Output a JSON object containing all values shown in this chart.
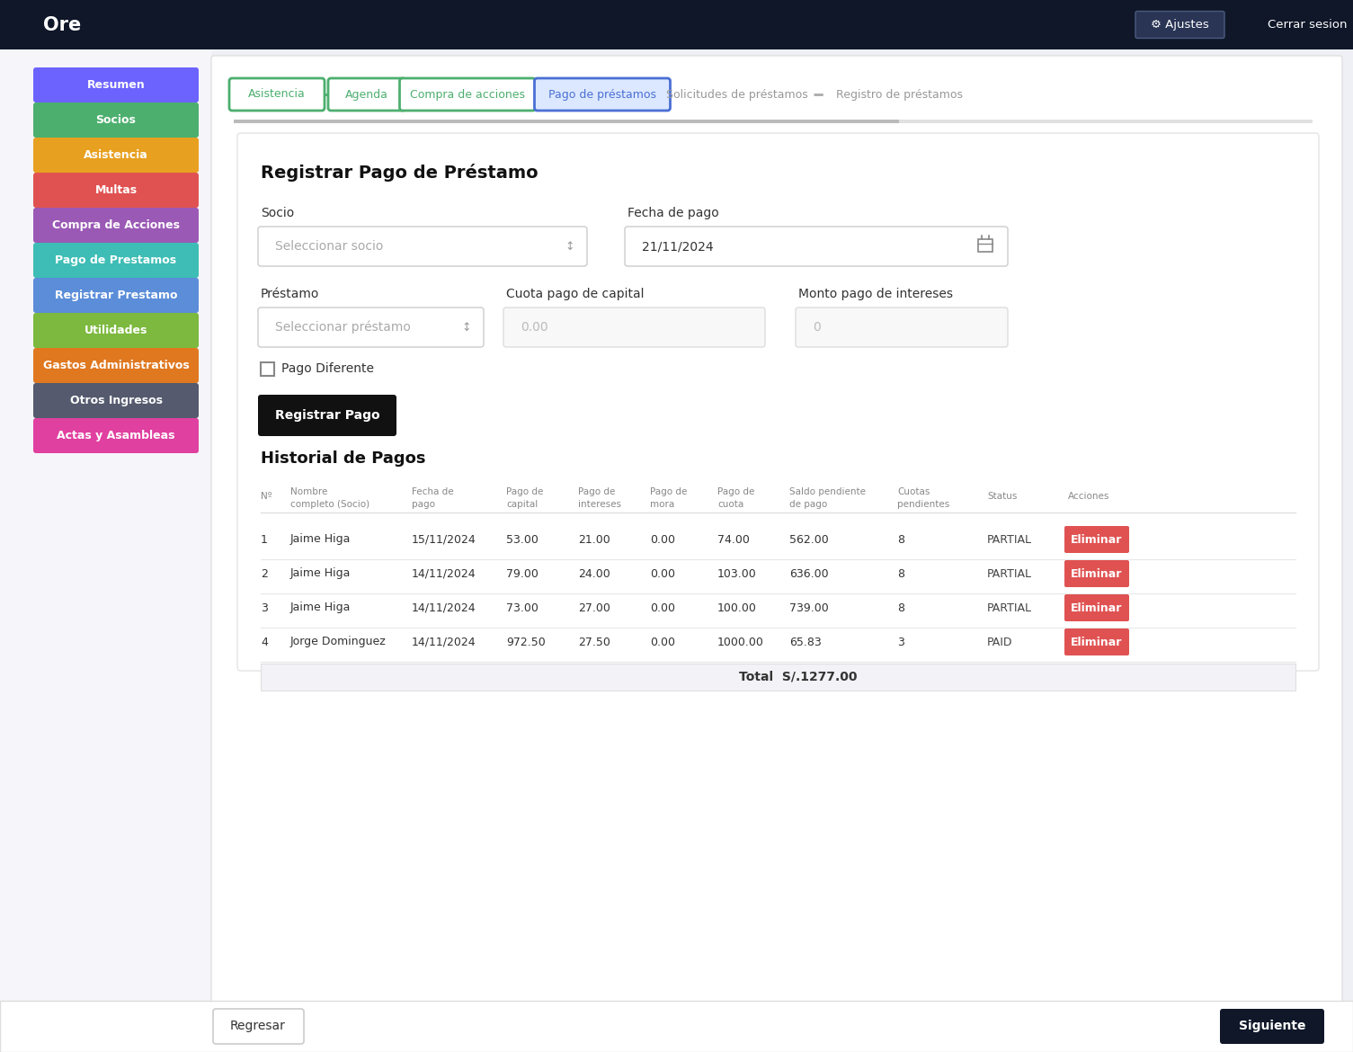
{
  "title": "Ore",
  "nav_bg": "#0f1729",
  "nav_text_color": "#ffffff",
  "sidebar_bg": "#f5f5fa",
  "main_bg": "#eef0f5",
  "card_bg": "#ffffff",
  "sidebar_items": [
    {
      "label": "Resumen",
      "color": "#6c63ff"
    },
    {
      "label": "Socios",
      "color": "#4caf6e"
    },
    {
      "label": "Asistencia",
      "color": "#e8a020"
    },
    {
      "label": "Multas",
      "color": "#e05252"
    },
    {
      "label": "Compra de Acciones",
      "color": "#9b59b6"
    },
    {
      "label": "Pago de Prestamos",
      "color": "#3dbdb5"
    },
    {
      "label": "Registrar Prestamo",
      "color": "#5b8dd9"
    },
    {
      "label": "Utilidades",
      "color": "#7cb93e"
    },
    {
      "label": "Gastos Administrativos",
      "color": "#e07820"
    },
    {
      "label": "Otros Ingresos",
      "color": "#555a6e"
    },
    {
      "label": "Actas y Asambleas",
      "color": "#e040a0"
    }
  ],
  "steps": [
    {
      "label": "Asistencia",
      "done": true,
      "active": false
    },
    {
      "label": "Agenda",
      "done": true,
      "active": false
    },
    {
      "label": "Compra de acciones",
      "done": true,
      "active": false
    },
    {
      "label": "Pago de préstamos",
      "done": false,
      "active": true
    },
    {
      "label": "Solicitudes de préstamos",
      "done": false,
      "active": false
    },
    {
      "label": "Registro de préstamos",
      "done": false,
      "active": false
    }
  ],
  "form_title": "Registrar Pago de Préstamo",
  "field_socio_label": "Socio",
  "field_socio_placeholder": "Seleccionar socio",
  "field_fecha_label": "Fecha de pago",
  "field_fecha_value": "21/11/2024",
  "field_prestamo_label": "Préstamo",
  "field_prestamo_placeholder": "Seleccionar préstamo",
  "field_cuota_label": "Cuota pago de capital",
  "field_cuota_placeholder": "0.00",
  "field_monto_label": "Monto pago de intereses",
  "field_monto_placeholder": "0",
  "checkbox_label": "Pago Diferente",
  "btn_label": "Registrar Pago",
  "table_title": "Historial de Pagos",
  "table_col_headers": [
    [
      "Nº",
      ""
    ],
    [
      "Nombre",
      "completo (Socio)"
    ],
    [
      "Fecha de",
      "pago"
    ],
    [
      "Pago de",
      "capital"
    ],
    [
      "Pago de",
      "intereses"
    ],
    [
      "Pago de",
      "mora"
    ],
    [
      "Pago de",
      "cuota"
    ],
    [
      "Saldo pendiente",
      "de pago"
    ],
    [
      "Cuotas",
      "pendientes"
    ],
    [
      "Status",
      ""
    ],
    [
      "Acciones",
      ""
    ]
  ],
  "table_rows": [
    [
      "1",
      "Jaime Higa",
      "15/11/2024",
      "53.00",
      "21.00",
      "0.00",
      "74.00",
      "562.00",
      "8",
      "PARTIAL",
      "Eliminar"
    ],
    [
      "2",
      "Jaime Higa",
      "14/11/2024",
      "79.00",
      "24.00",
      "0.00",
      "103.00",
      "636.00",
      "8",
      "PARTIAL",
      "Eliminar"
    ],
    [
      "3",
      "Jaime Higa",
      "14/11/2024",
      "73.00",
      "27.00",
      "0.00",
      "100.00",
      "739.00",
      "8",
      "PARTIAL",
      "Eliminar"
    ],
    [
      "4",
      "Jorge Dominguez",
      "14/11/2024",
      "972.50",
      "27.50",
      "0.00",
      "1000.00",
      "65.83",
      "3",
      "PAID",
      "Eliminar"
    ]
  ],
  "table_total": "Total  S/.1277.00",
  "btn_regresar": "Regresar",
  "btn_siguiente": "Siguiente",
  "btn_ajustes": "Ajustes",
  "btn_cerrar": "Cerrar sesion",
  "eliminar_color": "#e05252",
  "btn_black": "#111111",
  "step_done_color": "#4caf6e",
  "step_active_color": "#4a6fd4",
  "step_inactive_color": "#aaaaaa",
  "partial_color": "#333333",
  "paid_color": "#333333"
}
